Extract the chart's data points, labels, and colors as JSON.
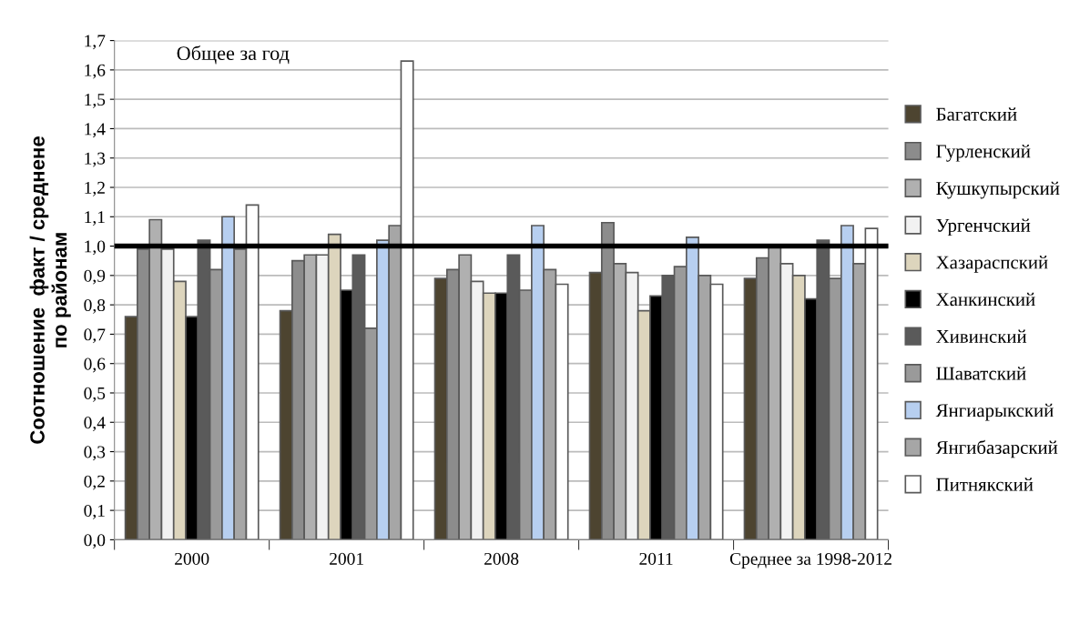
{
  "chart_data": {
    "type": "bar",
    "title": "Общее за год",
    "ylabel": "Соотношение  факт / среднене\nпо районам",
    "categories": [
      "2000",
      "2001",
      "2008",
      "2011",
      "Среднее за 1998-2012"
    ],
    "series": [
      {
        "name": "Багатский",
        "color": "#4d4430",
        "values": [
          0.76,
          0.78,
          0.89,
          0.91,
          0.89
        ]
      },
      {
        "name": "Гурленский",
        "color": "#8c8c8c",
        "values": [
          0.99,
          0.95,
          0.92,
          1.08,
          0.96
        ]
      },
      {
        "name": "Кушкупырский",
        "color": "#b0b0b0",
        "values": [
          1.09,
          0.97,
          0.97,
          0.94,
          1.0
        ]
      },
      {
        "name": "Ургенчский",
        "color": "#f2f2f2",
        "values": [
          0.99,
          0.97,
          0.88,
          0.91,
          0.94
        ]
      },
      {
        "name": "Хазараспский",
        "color": "#ddd5bd",
        "values": [
          0.88,
          1.04,
          0.84,
          0.78,
          0.9
        ]
      },
      {
        "name": "Ханкинский",
        "color": "#000000",
        "values": [
          0.76,
          0.85,
          0.84,
          0.83,
          0.82
        ]
      },
      {
        "name": "Хивинский",
        "color": "#5a5a5a",
        "values": [
          1.02,
          0.97,
          0.97,
          0.9,
          1.02
        ]
      },
      {
        "name": "Шаватский",
        "color": "#9a9a9a",
        "values": [
          0.92,
          0.72,
          0.85,
          0.93,
          0.89
        ]
      },
      {
        "name": "Янгиарыкский",
        "color": "#b7cff0",
        "values": [
          1.1,
          1.02,
          1.07,
          1.03,
          1.07
        ]
      },
      {
        "name": "Янгибазарский",
        "color": "#a6a6a6",
        "values": [
          0.99,
          1.07,
          0.92,
          0.9,
          0.94
        ]
      },
      {
        "name": "Питнякский",
        "color": "#ffffff",
        "values": [
          1.14,
          1.63,
          0.87,
          0.87,
          1.06
        ]
      }
    ],
    "ylim": [
      0,
      1.7
    ],
    "yticks": [
      {
        "value": 0,
        "label": "0,0"
      },
      {
        "value": 0.1,
        "label": "0,1"
      },
      {
        "value": 0.2,
        "label": "0,2"
      },
      {
        "value": 0.3,
        "label": "0,3"
      },
      {
        "value": 0.4,
        "label": "0,4"
      },
      {
        "value": 0.5,
        "label": "0,5"
      },
      {
        "value": 0.6,
        "label": "0,6"
      },
      {
        "value": 0.7,
        "label": "0,7"
      },
      {
        "value": 0.8,
        "label": "0,8"
      },
      {
        "value": 0.9,
        "label": "0,9"
      },
      {
        "value": 1.0,
        "label": "1,0"
      },
      {
        "value": 1.1,
        "label": "1,1"
      },
      {
        "value": 1.2,
        "label": "1,2"
      },
      {
        "value": 1.3,
        "label": "1,3"
      },
      {
        "value": 1.4,
        "label": "1,4"
      },
      {
        "value": 1.5,
        "label": "1,5"
      },
      {
        "value": 1.6,
        "label": "1,6"
      },
      {
        "value": 1.7,
        "label": "1,7"
      }
    ],
    "ref_lines": [
      {
        "axis": "y",
        "value": 1.0,
        "color": "#000000"
      }
    ],
    "grid": "y",
    "legend": "right"
  }
}
